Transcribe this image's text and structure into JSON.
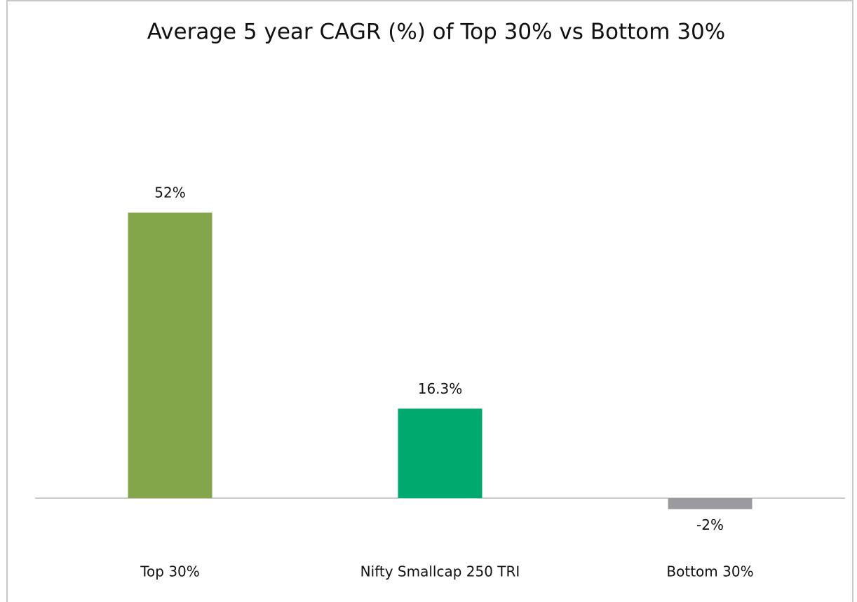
{
  "chart_data": {
    "type": "bar",
    "title": "Average 5 year CAGR (%) of Top 30% vs Bottom 30%",
    "categories": [
      "Top 30%",
      "Nifty Smallcap 250 TRI",
      "Bottom 30%"
    ],
    "values": [
      52,
      16.3,
      -2
    ],
    "value_labels": [
      "52%",
      "16.3%",
      "-2%"
    ],
    "colors": [
      "#84a64b",
      "#00a96e",
      "#9b9b9f"
    ]
  }
}
